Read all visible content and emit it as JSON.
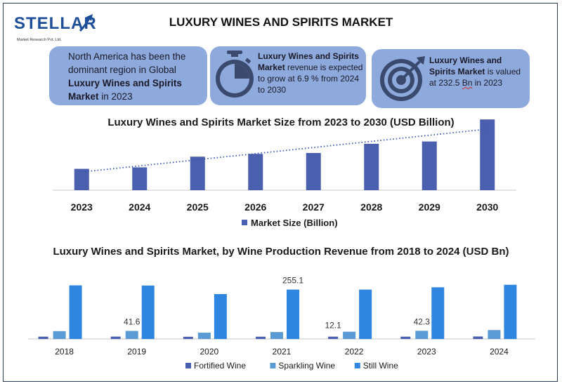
{
  "brand": {
    "name": "STELLAR",
    "tagline": "Market Research Pvt. Ltd."
  },
  "title": "LUXURY WINES AND SPIRITS MARKET",
  "info_boxes": [
    {
      "pre": "North America has been the dominant region in Global ",
      "bold": "Luxury Wines and Spirits Market",
      "post": " in 2023"
    },
    {
      "bold": "Luxury Wines and Spirits Market",
      "post": " revenue is expected to grow at 6.9 % from 2024 to 2030"
    },
    {
      "bold": "Luxury Wines and Spirits Market",
      "mid": " is valued at 232.5 ",
      "squiggle": "Bn",
      "post": " in 2023"
    }
  ],
  "colors": {
    "info_box": "#8ea9db",
    "bar_dark": "#4a5fae",
    "sparkling": "#5b9bd5",
    "still": "#2f86e0",
    "trend": "#3b55b0"
  },
  "chart_data": [
    {
      "type": "bar",
      "title": "Luxury Wines and Spirits Market Size from 2023 to 2030 (USD Billion)",
      "categories": [
        "2023",
        "2024",
        "2025",
        "2026",
        "2027",
        "2028",
        "2029",
        "2030"
      ],
      "series": [
        {
          "name": "Market Size (Billion)",
          "values": [
            232.5,
            248.5,
            365,
            395,
            405,
            505,
            530,
            770
          ]
        }
      ],
      "trendline": "linear, dotted",
      "legend": "bottom",
      "grid": false
    },
    {
      "type": "bar",
      "title": "Luxury Wines and Spirits Market, by Wine Production Revenue from 2018 to 2024 (USD Bn)",
      "categories": [
        "2018",
        "2019",
        "2020",
        "2021",
        "2022",
        "2023",
        "2024"
      ],
      "series": [
        {
          "name": "Fortified Wine",
          "values": [
            12.0,
            12.3,
            11.5,
            11.8,
            12.1,
            12.0,
            12.8
          ]
        },
        {
          "name": "Sparkling Wine",
          "values": [
            40.5,
            41.6,
            32.5,
            36.0,
            37.5,
            42.3,
            46.0
          ]
        },
        {
          "name": "Still Wine",
          "values": [
            277,
            276,
            232,
            255.1,
            255,
            267,
            280
          ]
        }
      ],
      "data_labels": [
        {
          "category": "2019",
          "series": "Sparkling Wine",
          "text": "41.6"
        },
        {
          "category": "2021",
          "series": "Still Wine",
          "text": "255.1"
        },
        {
          "category": "2022",
          "series": "Fortified Wine",
          "text": "12.1"
        },
        {
          "category": "2023",
          "series": "Sparkling Wine",
          "text": "42.3"
        }
      ],
      "legend": "bottom",
      "grid": false
    }
  ]
}
